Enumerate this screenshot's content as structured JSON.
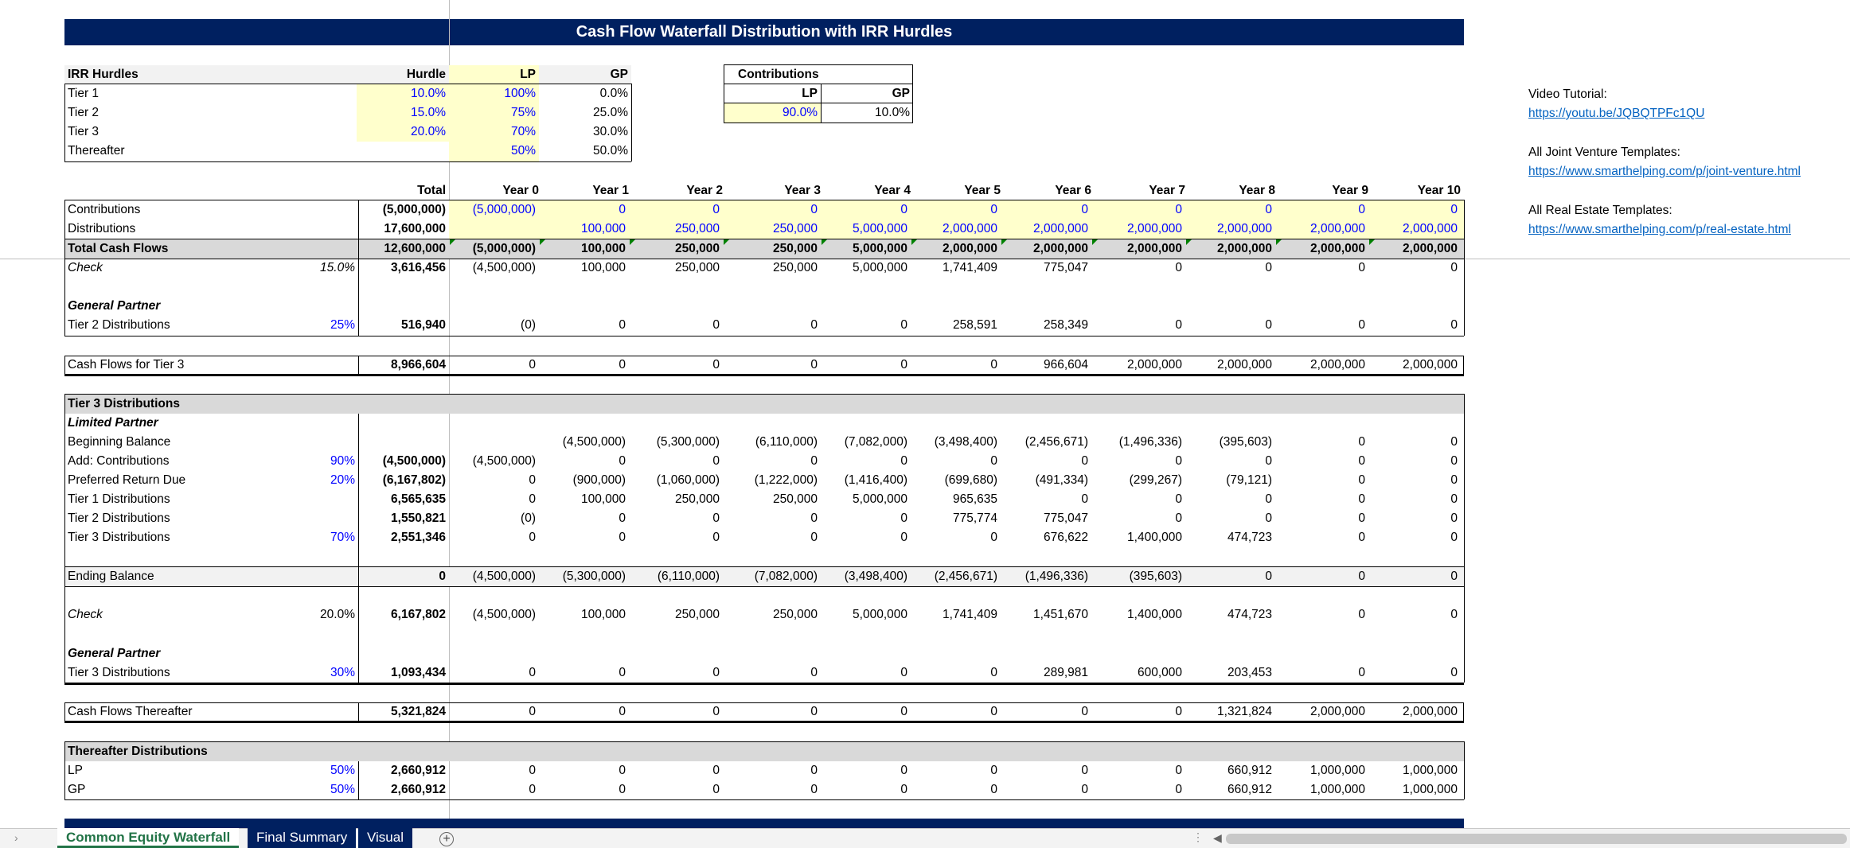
{
  "title": "Cash Flow Waterfall Distribution with IRR Hurdles",
  "hurdles": {
    "headers": [
      "IRR Hurdles",
      "Hurdle",
      "LP",
      "GP"
    ],
    "rows": [
      {
        "label": "Tier 1",
        "hurdle": "10.0%",
        "lp": "100%",
        "gp": "0.0%"
      },
      {
        "label": "Tier 2",
        "hurdle": "15.0%",
        "lp": "75%",
        "gp": "25.0%"
      },
      {
        "label": "Tier 3",
        "hurdle": "20.0%",
        "lp": "70%",
        "gp": "30.0%"
      },
      {
        "label": "Thereafter",
        "hurdle": "",
        "lp": "50%",
        "gp": "50.0%"
      }
    ]
  },
  "contributions_box": {
    "title": "Contributions",
    "lp_label": "LP",
    "gp_label": "GP",
    "lp": "90.0%",
    "gp": "10.0%"
  },
  "links": {
    "video_label": "Video Tutorial:",
    "video_url": "https://youtu.be/JQBQTPFc1QU",
    "jv_label": "All Joint Venture Templates:",
    "jv_url": "https://www.smarthelping.com/p/joint-venture.html",
    "re_label": "All Real Estate Templates:",
    "re_url": "https://www.smarthelping.com/p/real-estate.html"
  },
  "columns": [
    "Total",
    "Year 0",
    "Year 1",
    "Year 2",
    "Year 3",
    "Year 4",
    "Year 5",
    "Year 6",
    "Year 7",
    "Year 8",
    "Year 9",
    "Year 10"
  ],
  "cashflows": {
    "contributions": {
      "label": "Contributions",
      "values": [
        "(5,000,000)",
        "(5,000,000)",
        "0",
        "0",
        "0",
        "0",
        "0",
        "0",
        "0",
        "0",
        "0",
        "0"
      ]
    },
    "distributions": {
      "label": "Distributions",
      "values": [
        "17,600,000",
        "",
        "100,000",
        "250,000",
        "250,000",
        "5,000,000",
        "2,000,000",
        "2,000,000",
        "2,000,000",
        "2,000,000",
        "2,000,000",
        "2,000,000"
      ]
    },
    "total": {
      "label": "Total Cash Flows",
      "values": [
        "12,600,000",
        "(5,000,000)",
        "100,000",
        "250,000",
        "250,000",
        "5,000,000",
        "2,000,000",
        "2,000,000",
        "2,000,000",
        "2,000,000",
        "2,000,000",
        "2,000,000"
      ]
    },
    "check": {
      "label": "Check",
      "rate": "15.0%",
      "values": [
        "3,616,456",
        "(4,500,000)",
        "100,000",
        "250,000",
        "250,000",
        "5,000,000",
        "1,741,409",
        "775,047",
        "0",
        "0",
        "0",
        "0"
      ]
    }
  },
  "gp_tier2": {
    "heading": "General Partner",
    "label": "Tier 2 Distributions",
    "rate": "25%",
    "values": [
      "516,940",
      "(0)",
      "0",
      "0",
      "0",
      "0",
      "258,591",
      "258,349",
      "0",
      "0",
      "0",
      "0"
    ]
  },
  "tier3_cf": {
    "label": "Cash Flows for Tier 3",
    "values": [
      "8,966,604",
      "0",
      "0",
      "0",
      "0",
      "0",
      "0",
      "966,604",
      "2,000,000",
      "2,000,000",
      "2,000,000",
      "2,000,000"
    ]
  },
  "tier3": {
    "heading": "Tier 3 Distributions",
    "lp_heading": "Limited Partner",
    "rows": [
      {
        "label": "Beginning Balance",
        "rate": "",
        "values": [
          "",
          "",
          "(4,500,000)",
          "(5,300,000)",
          "(6,110,000)",
          "(7,082,000)",
          "(3,498,400)",
          "(2,456,671)",
          "(1,496,336)",
          "(395,603)",
          "0",
          "0"
        ]
      },
      {
        "label": "Add: Contributions",
        "rate": "90%",
        "values": [
          "(4,500,000)",
          "(4,500,000)",
          "0",
          "0",
          "0",
          "0",
          "0",
          "0",
          "0",
          "0",
          "0",
          "0"
        ]
      },
      {
        "label": "Preferred Return Due",
        "rate": "20%",
        "values": [
          "(6,167,802)",
          "0",
          "(900,000)",
          "(1,060,000)",
          "(1,222,000)",
          "(1,416,400)",
          "(699,680)",
          "(491,334)",
          "(299,267)",
          "(79,121)",
          "0",
          "0"
        ]
      },
      {
        "label": "Tier 1 Distributions",
        "rate": "",
        "values": [
          "6,565,635",
          "0",
          "100,000",
          "250,000",
          "250,000",
          "5,000,000",
          "965,635",
          "0",
          "0",
          "0",
          "0",
          "0"
        ]
      },
      {
        "label": "Tier 2 Distributions",
        "rate": "",
        "values": [
          "1,550,821",
          "(0)",
          "0",
          "0",
          "0",
          "0",
          "775,774",
          "775,047",
          "0",
          "0",
          "0",
          "0"
        ]
      },
      {
        "label": "Tier 3 Distributions",
        "rate": "70%",
        "values": [
          "2,551,346",
          "0",
          "0",
          "0",
          "0",
          "0",
          "0",
          "676,622",
          "1,400,000",
          "474,723",
          "0",
          "0"
        ]
      }
    ],
    "ending": {
      "label": "Ending Balance",
      "values": [
        "0",
        "(4,500,000)",
        "(5,300,000)",
        "(6,110,000)",
        "(7,082,000)",
        "(3,498,400)",
        "(2,456,671)",
        "(1,496,336)",
        "(395,603)",
        "0",
        "0",
        "0"
      ]
    },
    "check": {
      "label": "Check",
      "rate": "20.0%",
      "values": [
        "6,167,802",
        "(4,500,000)",
        "100,000",
        "250,000",
        "250,000",
        "5,000,000",
        "1,741,409",
        "1,451,670",
        "1,400,000",
        "474,723",
        "0",
        "0"
      ]
    },
    "gp_heading": "General Partner",
    "gp": {
      "label": "Tier 3 Distributions",
      "rate": "30%",
      "values": [
        "1,093,434",
        "0",
        "0",
        "0",
        "0",
        "0",
        "0",
        "289,981",
        "600,000",
        "203,453",
        "0",
        "0"
      ]
    }
  },
  "thereafter_cf": {
    "label": "Cash Flows Thereafter",
    "values": [
      "5,321,824",
      "0",
      "0",
      "0",
      "0",
      "0",
      "0",
      "0",
      "0",
      "1,321,824",
      "2,000,000",
      "2,000,000"
    ]
  },
  "thereafter": {
    "heading": "Thereafter Distributions",
    "rows": [
      {
        "label": "LP",
        "rate": "50%",
        "values": [
          "2,660,912",
          "0",
          "0",
          "0",
          "0",
          "0",
          "0",
          "0",
          "0",
          "660,912",
          "1,000,000",
          "1,000,000"
        ]
      },
      {
        "label": "GP",
        "rate": "50%",
        "values": [
          "2,660,912",
          "0",
          "0",
          "0",
          "0",
          "0",
          "0",
          "0",
          "0",
          "660,912",
          "1,000,000",
          "1,000,000"
        ]
      }
    ]
  },
  "tabs": [
    "Common Equity Waterfall",
    "Final Summary",
    "Visual"
  ],
  "colors": {
    "header_navy": "#002060",
    "input_yellow": "#ffffcc",
    "input_blue": "#0000ff",
    "gray_band": "#d9d9d9",
    "tab_green": "#217346"
  }
}
